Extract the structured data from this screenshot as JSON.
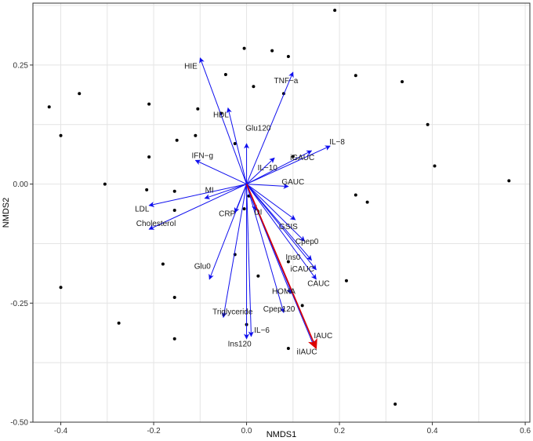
{
  "chart_data": {
    "type": "scatter",
    "xlabel": "NMDS1",
    "ylabel": "NMDS2",
    "xlim": [
      -0.46,
      0.61
    ],
    "ylim": [
      -0.5,
      0.38
    ],
    "xticks": [
      -0.4,
      -0.2,
      0.0,
      0.2,
      0.4,
      0.6
    ],
    "xtick_labels": [
      "-0.4",
      "-0.2",
      "0.0",
      "0.2",
      "0.4",
      "0.6"
    ],
    "yticks": [
      -0.5,
      -0.25,
      0.0,
      0.25
    ],
    "ytick_labels": [
      "-0.50",
      "-0.25",
      "0.00",
      "0.25"
    ],
    "grid": true,
    "points": [
      [
        0.19,
        0.365
      ],
      [
        -0.005,
        0.285
      ],
      [
        0.055,
        0.28
      ],
      [
        0.09,
        0.268
      ],
      [
        -0.045,
        0.23
      ],
      [
        0.235,
        0.228
      ],
      [
        0.335,
        0.215
      ],
      [
        0.015,
        0.205
      ],
      [
        -0.36,
        0.19
      ],
      [
        0.08,
        0.19
      ],
      [
        -0.21,
        0.168
      ],
      [
        -0.425,
        0.162
      ],
      [
        -0.105,
        0.158
      ],
      [
        -0.055,
        0.148
      ],
      [
        0.39,
        0.125
      ],
      [
        -0.4,
        0.102
      ],
      [
        -0.11,
        0.102
      ],
      [
        -0.15,
        0.092
      ],
      [
        -0.025,
        0.085
      ],
      [
        -0.21,
        0.057
      ],
      [
        0.1,
        0.058
      ],
      [
        0.405,
        0.038
      ],
      [
        -0.305,
        0.0
      ],
      [
        0.565,
        0.007
      ],
      [
        -0.215,
        -0.012
      ],
      [
        -0.155,
        -0.015
      ],
      [
        0.235,
        -0.023
      ],
      [
        0.26,
        -0.038
      ],
      [
        -0.155,
        -0.055
      ],
      [
        -0.005,
        -0.052
      ],
      [
        0.005,
        -0.025
      ],
      [
        -0.025,
        -0.148
      ],
      [
        -0.18,
        -0.168
      ],
      [
        0.09,
        -0.163
      ],
      [
        0.025,
        -0.193
      ],
      [
        0.215,
        -0.203
      ],
      [
        -0.4,
        -0.217
      ],
      [
        -0.155,
        -0.238
      ],
      [
        0.12,
        -0.255
      ],
      [
        -0.275,
        -0.292
      ],
      [
        0.0,
        -0.295
      ],
      [
        -0.155,
        -0.325
      ],
      [
        0.09,
        -0.345
      ],
      [
        0.32,
        -0.462
      ]
    ],
    "vectors": [
      {
        "name": "HIE",
        "x": -0.1,
        "y": 0.265,
        "lx": -0.12,
        "ly": 0.248
      },
      {
        "name": "TNF−a",
        "x": 0.1,
        "y": 0.235,
        "lx": 0.085,
        "ly": 0.218
      },
      {
        "name": "HDL",
        "x": -0.04,
        "y": 0.16,
        "lx": -0.055,
        "ly": 0.146
      },
      {
        "name": "IL−8",
        "x": 0.18,
        "y": 0.08,
        "lx": 0.195,
        "ly": 0.089
      },
      {
        "name": "Glu120",
        "x": 0.0,
        "y": 0.085,
        "lx": 0.025,
        "ly": 0.118
      },
      {
        "name": "iGAUC",
        "x": 0.14,
        "y": 0.07,
        "lx": 0.12,
        "ly": 0.056
      },
      {
        "name": "IL−10",
        "x": 0.06,
        "y": 0.055,
        "lx": 0.045,
        "ly": 0.035
      },
      {
        "name": "IFN−g",
        "x": -0.11,
        "y": 0.05,
        "lx": -0.095,
        "ly": 0.06
      },
      {
        "name": "GAUC",
        "x": 0.09,
        "y": -0.005,
        "lx": 0.1,
        "ly": 0.005
      },
      {
        "name": "MI",
        "x": -0.09,
        "y": -0.03,
        "lx": -0.08,
        "ly": -0.012
      },
      {
        "name": "LDL",
        "x": -0.21,
        "y": -0.045,
        "lx": -0.225,
        "ly": -0.052
      },
      {
        "name": "CRP",
        "x": -0.025,
        "y": -0.06,
        "lx": -0.042,
        "ly": -0.062
      },
      {
        "name": "DI",
        "x": 0.02,
        "y": -0.055,
        "lx": 0.025,
        "ly": -0.058
      },
      {
        "name": "Cholesterol",
        "x": -0.21,
        "y": -0.095,
        "lx": -0.195,
        "ly": -0.082
      },
      {
        "name": "GSIS",
        "x": 0.105,
        "y": -0.075,
        "lx": 0.09,
        "ly": -0.089
      },
      {
        "name": "Cpep0",
        "x": 0.125,
        "y": -0.12,
        "lx": 0.13,
        "ly": -0.12
      },
      {
        "name": "Ins0",
        "x": 0.14,
        "y": -0.16,
        "lx": 0.1,
        "ly": -0.153
      },
      {
        "name": "iCAUC",
        "x": 0.15,
        "y": -0.18,
        "lx": 0.12,
        "ly": -0.178
      },
      {
        "name": "CAUC",
        "x": 0.15,
        "y": -0.2,
        "lx": 0.155,
        "ly": -0.208
      },
      {
        "name": "HOMA",
        "x": 0.095,
        "y": -0.23,
        "lx": 0.08,
        "ly": -0.225
      },
      {
        "name": "Glu0",
        "x": -0.08,
        "y": -0.2,
        "lx": -0.095,
        "ly": -0.172
      },
      {
        "name": "Cpep120",
        "x": 0.08,
        "y": -0.27,
        "lx": 0.07,
        "ly": -0.262
      },
      {
        "name": "Triglyceride",
        "x": -0.05,
        "y": -0.28,
        "lx": -0.03,
        "ly": -0.268
      },
      {
        "name": "IL−6",
        "x": 0.01,
        "y": -0.32,
        "lx": 0.033,
        "ly": -0.306
      },
      {
        "name": "Ins120",
        "x": 0.0,
        "y": -0.325,
        "lx": -0.015,
        "ly": -0.335
      },
      {
        "name": "IAUC",
        "x": 0.145,
        "y": -0.34,
        "lx": 0.165,
        "ly": -0.318
      },
      {
        "name": "iIAUC",
        "x": 0.15,
        "y": -0.345,
        "lx": 0.13,
        "ly": -0.352
      }
    ],
    "highlight_vector": {
      "x": 0.15,
      "y": -0.345
    },
    "colors": {
      "vectors": "#1010ee",
      "highlight": "#dd0000",
      "points": "#000000",
      "grid": "#e4e4e4",
      "frame": "#333333"
    }
  }
}
